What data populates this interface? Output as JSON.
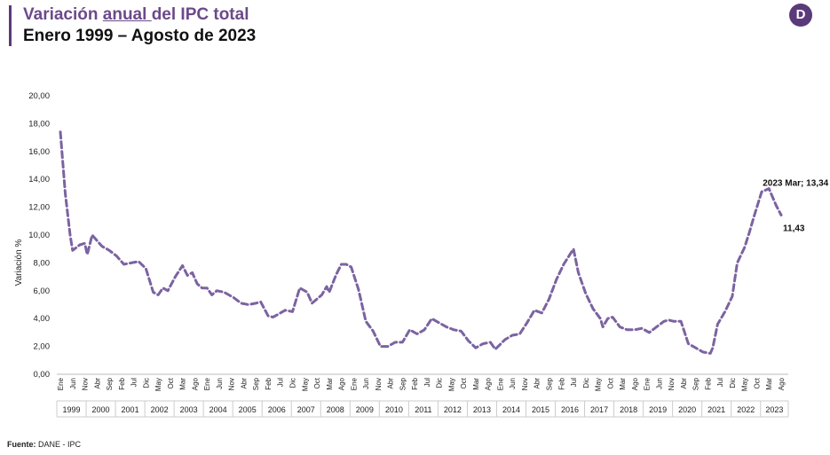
{
  "header": {
    "title_prefix": "Variación ",
    "title_underlined": "anual ",
    "title_suffix": "del IPC total",
    "subtitle": "Enero 1999 – Agosto de 2023",
    "logo_letter": "D"
  },
  "footer": {
    "source_label": "Fuente:",
    "source_value": " DANE - IPC"
  },
  "colors": {
    "line": "#7b63a0",
    "title": "#6b4a8a",
    "brand": "#5a3a7a"
  },
  "chart_data": {
    "type": "line",
    "title": "",
    "xlabel": "",
    "ylabel": "Variación %",
    "ylim": [
      0,
      20
    ],
    "yticks": [
      "0,00",
      "2,00",
      "4,00",
      "6,00",
      "8,00",
      "10,00",
      "12,00",
      "14,00",
      "16,00",
      "18,00",
      "20,00"
    ],
    "month_ticks": [
      "Ene",
      "Jun",
      "Nov",
      "Abr",
      "Sep",
      "Feb",
      "Jul",
      "Dic",
      "May",
      "Oct",
      "Mar",
      "Ago"
    ],
    "years": [
      "1999",
      "2000",
      "2001",
      "2002",
      "2003",
      "2004",
      "2005",
      "2006",
      "2007",
      "2008",
      "2009",
      "2010",
      "2011",
      "2012",
      "2013",
      "2014",
      "2015",
      "2016",
      "2017",
      "2018",
      "2019",
      "2020",
      "2021",
      "2022",
      "2023"
    ],
    "line_style": "dashed",
    "grid": false,
    "series": [
      {
        "points": [
          [
            "1999-01",
            17.4
          ],
          [
            "1999-03",
            13.0
          ],
          [
            "1999-05",
            10.0
          ],
          [
            "1999-06",
            8.9
          ],
          [
            "1999-09",
            9.3
          ],
          [
            "1999-11",
            9.4
          ],
          [
            "1999-12",
            8.6
          ],
          [
            "2000-02",
            10.0
          ],
          [
            "2000-04",
            9.6
          ],
          [
            "2000-06",
            9.2
          ],
          [
            "2000-09",
            8.9
          ],
          [
            "2000-12",
            8.5
          ],
          [
            "2001-03",
            7.9
          ],
          [
            "2001-06",
            8.0
          ],
          [
            "2001-09",
            8.1
          ],
          [
            "2001-12",
            7.6
          ],
          [
            "2002-03",
            5.9
          ],
          [
            "2002-05",
            5.7
          ],
          [
            "2002-07",
            6.2
          ],
          [
            "2002-09",
            6.0
          ],
          [
            "2002-12",
            7.0
          ],
          [
            "2003-03",
            7.8
          ],
          [
            "2003-05",
            7.1
          ],
          [
            "2003-07",
            7.3
          ],
          [
            "2003-09",
            6.5
          ],
          [
            "2003-11",
            6.2
          ],
          [
            "2004-01",
            6.2
          ],
          [
            "2004-03",
            5.7
          ],
          [
            "2004-05",
            6.0
          ],
          [
            "2004-08",
            5.9
          ],
          [
            "2004-12",
            5.5
          ],
          [
            "2005-03",
            5.1
          ],
          [
            "2005-06",
            5.0
          ],
          [
            "2005-09",
            5.1
          ],
          [
            "2005-11",
            5.2
          ],
          [
            "2006-02",
            4.2
          ],
          [
            "2006-04",
            4.1
          ],
          [
            "2006-06",
            4.3
          ],
          [
            "2006-09",
            4.6
          ],
          [
            "2006-12",
            4.5
          ],
          [
            "2007-03",
            6.2
          ],
          [
            "2007-06",
            5.9
          ],
          [
            "2007-08",
            5.1
          ],
          [
            "2007-10",
            5.4
          ],
          [
            "2007-12",
            5.7
          ],
          [
            "2008-02",
            6.3
          ],
          [
            "2008-03",
            5.9
          ],
          [
            "2008-06",
            7.2
          ],
          [
            "2008-08",
            7.9
          ],
          [
            "2008-10",
            7.9
          ],
          [
            "2008-12",
            7.7
          ],
          [
            "2009-03",
            6.1
          ],
          [
            "2009-06",
            3.8
          ],
          [
            "2009-09",
            3.1
          ],
          [
            "2009-12",
            2.0
          ],
          [
            "2010-03",
            2.0
          ],
          [
            "2010-06",
            2.3
          ],
          [
            "2010-09",
            2.3
          ],
          [
            "2010-12",
            3.2
          ],
          [
            "2011-03",
            2.9
          ],
          [
            "2011-06",
            3.2
          ],
          [
            "2011-09",
            4.0
          ],
          [
            "2011-12",
            3.7
          ],
          [
            "2012-03",
            3.4
          ],
          [
            "2012-06",
            3.2
          ],
          [
            "2012-09",
            3.1
          ],
          [
            "2012-12",
            2.4
          ],
          [
            "2013-03",
            1.9
          ],
          [
            "2013-06",
            2.2
          ],
          [
            "2013-09",
            2.3
          ],
          [
            "2013-11",
            1.8
          ],
          [
            "2014-03",
            2.5
          ],
          [
            "2014-06",
            2.8
          ],
          [
            "2014-09",
            2.9
          ],
          [
            "2014-12",
            3.7
          ],
          [
            "2015-03",
            4.6
          ],
          [
            "2015-06",
            4.4
          ],
          [
            "2015-09",
            5.4
          ],
          [
            "2015-12",
            6.8
          ],
          [
            "2016-03",
            7.9
          ],
          [
            "2016-07",
            9.0
          ],
          [
            "2016-09",
            7.3
          ],
          [
            "2016-12",
            5.8
          ],
          [
            "2017-03",
            4.7
          ],
          [
            "2017-06",
            4.0
          ],
          [
            "2017-07",
            3.4
          ],
          [
            "2017-09",
            4.0
          ],
          [
            "2017-11",
            4.1
          ],
          [
            "2018-02",
            3.4
          ],
          [
            "2018-05",
            3.2
          ],
          [
            "2018-08",
            3.2
          ],
          [
            "2018-11",
            3.3
          ],
          [
            "2019-02",
            3.0
          ],
          [
            "2019-05",
            3.4
          ],
          [
            "2019-08",
            3.8
          ],
          [
            "2019-10",
            3.9
          ],
          [
            "2019-12",
            3.8
          ],
          [
            "2020-03",
            3.8
          ],
          [
            "2020-06",
            2.2
          ],
          [
            "2020-09",
            1.9
          ],
          [
            "2020-12",
            1.6
          ],
          [
            "2021-03",
            1.5
          ],
          [
            "2021-04",
            1.9
          ],
          [
            "2021-06",
            3.6
          ],
          [
            "2021-09",
            4.5
          ],
          [
            "2021-12",
            5.6
          ],
          [
            "2022-02",
            8.0
          ],
          [
            "2022-05",
            9.1
          ],
          [
            "2022-07",
            10.2
          ],
          [
            "2022-09",
            11.4
          ],
          [
            "2022-12",
            13.1
          ],
          [
            "2023-03",
            13.34
          ],
          [
            "2023-06",
            12.1
          ],
          [
            "2023-08",
            11.43
          ]
        ]
      }
    ],
    "annotations": [
      {
        "label": "2023 Mar; 13,34",
        "x": "2023-03",
        "y": 13.34
      },
      {
        "label": "11,43",
        "x": "2023-08",
        "y": 11.43
      }
    ]
  }
}
